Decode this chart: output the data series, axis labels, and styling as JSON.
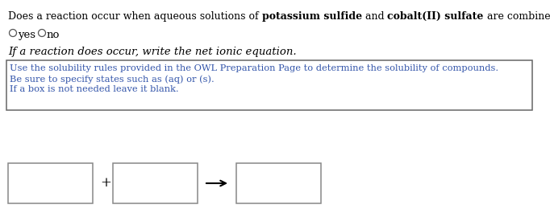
{
  "title_normal1": "Does a reaction occur when aqueous solutions of ",
  "title_bold1": "potassium sulfide",
  "title_normal2": " and ",
  "title_bold2": "cobalt(II) sulfate",
  "title_normal3": " are combined?",
  "radio_yes": "yes",
  "radio_no": "no",
  "subtext": "If a reaction does occur, write the net ionic equation.",
  "hint_line1": "Use the solubility rules provided in the OWL Preparation Page to determine the solubility of compounds.",
  "hint_line2": "Be sure to specify states such as (aq) or (s).",
  "hint_line3": "If a box is not needed leave it blank.",
  "bg_color": "#ffffff",
  "text_color": "#000000",
  "bold_color": "#1a1a1a",
  "hint_text_color": "#3355aa",
  "box_edge_color": "#888888",
  "hint_box_edge_color": "#666666",
  "font_size_main": 9.0,
  "font_size_radio": 9.5,
  "font_size_hint": 8.2,
  "font_size_sub": 9.5,
  "font_size_plus": 12,
  "font_family": "DejaVu Serif"
}
